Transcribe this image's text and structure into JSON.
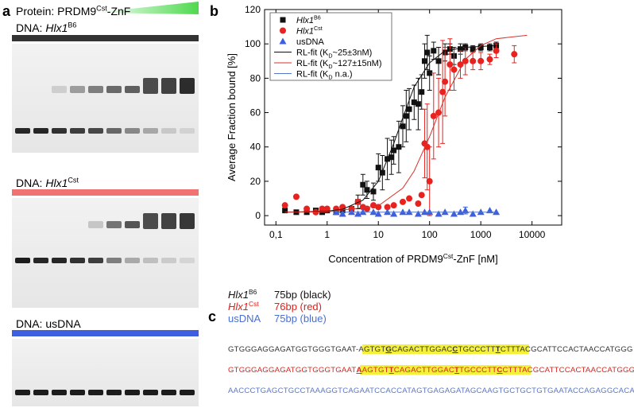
{
  "panels": {
    "a": "a",
    "b": "b",
    "c": "c"
  },
  "gel": {
    "protein": [
      {
        "text": "Protein: PRDM9"
      },
      {
        "text": "Cst",
        "style": "sup"
      },
      {
        "text": "-ZnF"
      }
    ],
    "blocks": [
      {
        "label": [
          {
            "text": "DNA: "
          },
          {
            "text": "Hlx1",
            "style": "it"
          },
          {
            "text": "B6",
            "style": "sup"
          }
        ],
        "color": "#333333"
      },
      {
        "label": [
          {
            "text": "DNA: "
          },
          {
            "text": "Hlx1",
            "style": "it"
          },
          {
            "text": "Cst",
            "style": "sup"
          }
        ],
        "color": "#f07272"
      },
      {
        "label": [
          {
            "text": "DNA: usDNA"
          }
        ],
        "color": "#3d5fe0"
      }
    ]
  },
  "chart_data": {
    "type": "scatter",
    "xscale": "log",
    "ylabel": "Average Fraction bound [%]",
    "xlabel": [
      {
        "text": "Concentration of PRDM9"
      },
      {
        "text": "Cst",
        "style": "sup"
      },
      {
        "text": "-ZnF [nM]"
      }
    ],
    "xlim": [
      0.06,
      38000
    ],
    "ylim": [
      -5.5,
      120
    ],
    "xticks": [
      {
        "value": 0.1,
        "label": "0,1"
      },
      1,
      10,
      100,
      1000,
      10000
    ],
    "yticks": [
      0,
      20,
      40,
      60,
      80,
      100,
      120
    ],
    "legend": "upper left",
    "series": [
      {
        "name": [
          {
            "text": "Hlx1",
            "style": "it"
          },
          {
            "text": "B6",
            "style": "sup"
          }
        ],
        "color": "#111111",
        "marker": "square",
        "x": [
          0.15,
          0.25,
          0.4,
          0.6,
          0.8,
          1,
          1.5,
          2,
          3,
          4,
          5,
          6,
          8,
          10,
          12,
          15,
          18,
          20,
          25,
          30,
          35,
          40,
          50,
          60,
          70,
          80,
          90,
          100,
          120,
          150,
          200,
          250,
          300,
          400,
          500,
          700,
          1000,
          1500,
          2000
        ],
        "values": [
          3,
          2,
          2,
          3,
          2,
          3,
          2,
          3,
          4,
          8,
          18,
          15,
          14,
          28,
          25,
          33,
          34,
          38,
          40,
          52,
          58,
          62,
          66,
          65,
          72,
          90,
          95,
          83,
          96,
          90,
          95,
          97,
          93,
          97,
          98,
          97,
          98,
          98,
          99
        ],
        "errors": [
          null,
          null,
          null,
          null,
          null,
          null,
          null,
          null,
          null,
          4,
          6,
          5,
          5,
          8,
          10,
          12,
          10,
          8,
          15,
          12,
          15,
          12,
          10,
          15,
          10,
          10,
          10,
          10,
          5,
          8,
          5,
          3,
          5,
          3,
          2,
          2,
          2,
          2,
          2
        ]
      },
      {
        "name": [
          {
            "text": "Hlx1",
            "style": "it"
          },
          {
            "text": "Cst",
            "style": "sup"
          }
        ],
        "color": "#e8231f",
        "marker": "circle",
        "x": [
          0.15,
          0.25,
          0.4,
          0.6,
          0.8,
          1,
          1.5,
          2,
          3,
          4,
          5,
          6,
          8,
          10,
          15,
          20,
          30,
          40,
          60,
          70,
          80,
          90,
          100,
          120,
          150,
          180,
          200,
          250,
          300,
          400,
          500,
          700,
          1000,
          1500,
          2000,
          4500
        ],
        "values": [
          6,
          11,
          4,
          2,
          4,
          4,
          4,
          5,
          4,
          8,
          5,
          4,
          6,
          5,
          5,
          6,
          8,
          10,
          7,
          12,
          42,
          40,
          20,
          58,
          60,
          72,
          78,
          88,
          85,
          88,
          90,
          90,
          90,
          91,
          96,
          94
        ],
        "errors": [
          null,
          null,
          null,
          null,
          null,
          null,
          null,
          null,
          null,
          null,
          null,
          null,
          null,
          null,
          null,
          null,
          null,
          null,
          null,
          null,
          20,
          25,
          20,
          25,
          20,
          30,
          20,
          15,
          12,
          8,
          8,
          5,
          5,
          3,
          4,
          5
        ]
      },
      {
        "name": [
          {
            "text": "usDNA"
          }
        ],
        "color": "#3b5fe0",
        "marker": "triangle",
        "x": [
          1.5,
          2,
          3,
          4,
          5,
          8,
          10,
          15,
          20,
          30,
          40,
          60,
          80,
          100,
          150,
          200,
          300,
          400,
          500,
          700,
          1000,
          1500,
          2000
        ],
        "values": [
          2,
          1,
          2,
          1,
          2,
          2,
          1,
          2,
          1,
          2,
          2,
          1,
          2,
          2,
          1,
          2,
          1,
          2,
          3,
          1,
          2,
          3,
          2
        ],
        "errors": [
          null,
          null,
          null,
          null,
          null,
          null,
          null,
          null,
          null,
          null,
          null,
          null,
          null,
          null,
          null,
          null,
          null,
          null,
          2,
          null,
          null,
          null,
          null
        ]
      },
      {
        "name": [
          {
            "text": "RL-fit (K"
          },
          {
            "text": "D",
            "style": "sub"
          },
          {
            "text": "~25±3nM)"
          }
        ],
        "color": "#111111",
        "marker": "line",
        "x": [
          0.15,
          1,
          2,
          5,
          10,
          20,
          30,
          50,
          100,
          200,
          500,
          2000
        ],
        "values": [
          2,
          2.6,
          3.7,
          9,
          20,
          42,
          57,
          75,
          89,
          96,
          98,
          99
        ]
      },
      {
        "name": [
          {
            "text": "RL-fit (K"
          },
          {
            "text": "D",
            "style": "sub"
          },
          {
            "text": "~127±15nM)"
          }
        ],
        "color": "#d9322b",
        "marker": "line",
        "x": [
          0.15,
          1,
          10,
          30,
          50,
          100,
          200,
          500,
          1000,
          2000,
          8000
        ],
        "values": [
          2,
          2.2,
          5.7,
          16,
          26,
          46,
          69,
          91,
          99,
          103,
          105
        ]
      },
      {
        "name": [
          {
            "text": "RL-fit (K"
          },
          {
            "text": "D",
            "style": "sub"
          },
          {
            "text": " n.a.)"
          }
        ],
        "color": "#5577cc",
        "marker": "line",
        "x": [
          1.5,
          2000
        ],
        "values": [
          2,
          2
        ]
      }
    ]
  },
  "seq_panel": {
    "legend": [
      {
        "name": [
          {
            "text": "Hlx1",
            "style": "it"
          },
          {
            "text": "B6",
            "style": "sup"
          }
        ],
        "desc": "75bp (black)",
        "color": "#111111"
      },
      {
        "name": [
          {
            "text": "Hlx1",
            "style": "it"
          },
          {
            "text": "Cst",
            "style": "sup"
          }
        ],
        "desc": "76bp (red)",
        "color": "#e0201b"
      },
      {
        "name": [
          {
            "text": "usDNA"
          }
        ],
        "desc": "75bp (blue)",
        "color": "#4a6fd0"
      }
    ],
    "sequences": [
      {
        "color": "#333333",
        "segments": [
          {
            "text": "GTGGGAGGAGATGGTGGGTGAAT-"
          },
          {
            "text": "AGTGT",
            "highlight": true
          },
          {
            "text": "G",
            "highlight": true,
            "emphasis": true
          },
          {
            "text": "CAGACTTGGAC",
            "highlight": true
          },
          {
            "text": "C",
            "highlight": true,
            "emphasis": true
          },
          {
            "text": "TGCCCTT",
            "highlight": true
          },
          {
            "text": "T",
            "highlight": true,
            "emphasis": true
          },
          {
            "text": "CTTT",
            "highlight": true
          },
          {
            "text": "ACGCATTCCACTAACCATGGG"
          }
        ]
      },
      {
        "color": "#d8251f",
        "segments": [
          {
            "text": "GTGGGAGGAGATGGTGGGTGAAT"
          },
          {
            "text": "A",
            "highlight": true,
            "emphasis": true
          },
          {
            "text": "AGTGT",
            "highlight": true
          },
          {
            "text": "T",
            "highlight": true,
            "emphasis": true
          },
          {
            "text": "CAGACTTGGAC",
            "highlight": true
          },
          {
            "text": "T",
            "highlight": true,
            "emphasis": true
          },
          {
            "text": "TGCCCTT",
            "highlight": true
          },
          {
            "text": "C",
            "highlight": true,
            "emphasis": true
          },
          {
            "text": "CTTT",
            "highlight": true
          },
          {
            "text": "ACGCATTCCACTAACCATGGG"
          }
        ]
      },
      {
        "color": "#5a78cc",
        "segments": [
          {
            "text": "AACCCTGAGCTGCCTAAAGGTCAGAATCCACCATAGTGAGAGATAGCAAGTGCTGCTGTGAATACCAGAGGCACA"
          }
        ]
      }
    ]
  }
}
